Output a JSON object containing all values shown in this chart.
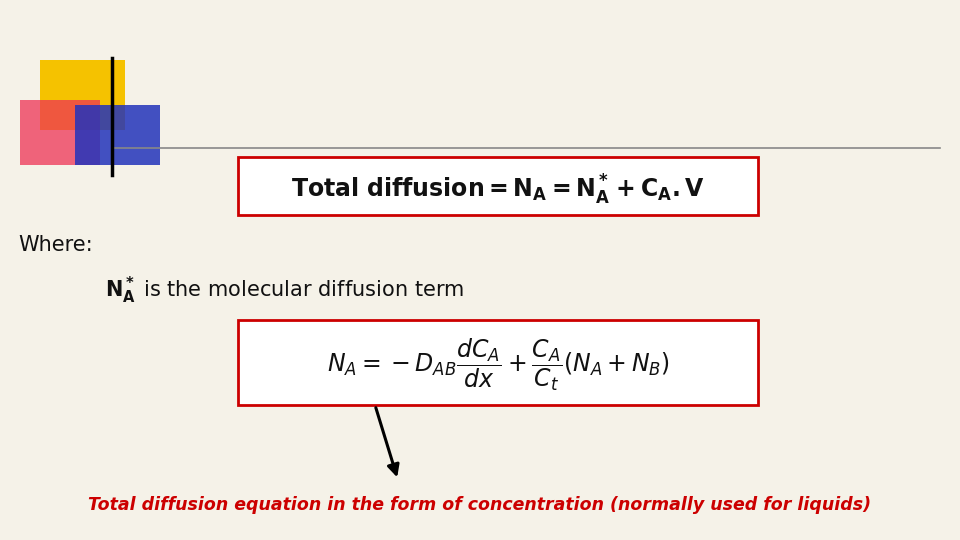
{
  "bg_color": "#f5f2e8",
  "box_edge_color": "#cc0000",
  "box_face_color": "white",
  "caption_color": "#cc0000",
  "text_color": "#111111",
  "logo_yellow": "#f5c200",
  "logo_red": "#ee3355",
  "logo_blue": "#2233bb",
  "line_color": "#555555"
}
